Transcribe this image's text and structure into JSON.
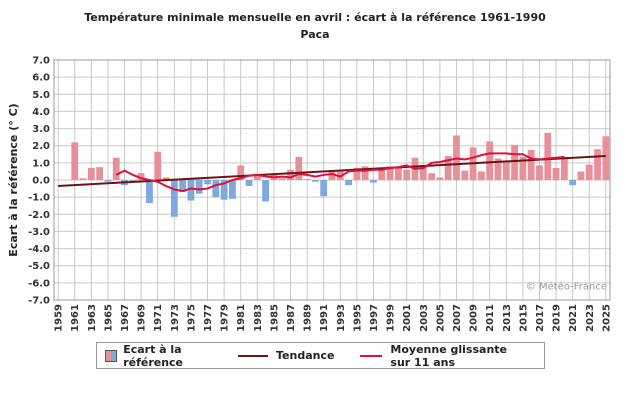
{
  "title": "Température minimale mensuelle en avril : écart à la référence 1961-1990",
  "subtitle": "Paca",
  "credit": "© Météo-France",
  "legend": {
    "bars": "Ecart à la référence",
    "trend": "Tendance",
    "moving_avg": "Moyenne glissante sur 11 ans"
  },
  "colors": {
    "positive": "#e8909a",
    "negative": "#7fa8dc",
    "trend": "#6b1414",
    "moving_avg": "#e0103c",
    "grid": "#c8c8c8"
  },
  "chart_data": {
    "type": "bar",
    "ylabel": "Ecart à la référence (° C)",
    "ylim": [
      -7.0,
      7.0
    ],
    "ytick_step": 1.0,
    "xtick_labels": [
      "1959",
      "1961",
      "1963",
      "1965",
      "1967",
      "1969",
      "1971",
      "1973",
      "1975",
      "1977",
      "1979",
      "1981",
      "1983",
      "1985",
      "1987",
      "1989",
      "1991",
      "1993",
      "1995",
      "1997",
      "1999",
      "2001",
      "2003",
      "2005",
      "2007",
      "2009",
      "2011",
      "2013",
      "2015",
      "2017",
      "2019",
      "2021",
      "2023",
      "2025"
    ],
    "years": [
      1961,
      1962,
      1963,
      1964,
      1965,
      1966,
      1967,
      1968,
      1969,
      1970,
      1971,
      1972,
      1973,
      1974,
      1975,
      1976,
      1977,
      1978,
      1979,
      1980,
      1981,
      1982,
      1983,
      1984,
      1985,
      1986,
      1987,
      1988,
      1989,
      1990,
      1991,
      1992,
      1993,
      1994,
      1995,
      1996,
      1997,
      1998,
      1999,
      2000,
      2001,
      2002,
      2003,
      2004,
      2005,
      2006,
      2007,
      2008,
      2009,
      2010,
      2011,
      2012,
      2013,
      2014,
      2015,
      2016,
      2017,
      2018,
      2019,
      2020,
      2021,
      2022,
      2023,
      2024,
      2025
    ],
    "values": [
      2.2,
      0.1,
      0.7,
      0.75,
      -0.1,
      1.3,
      -0.3,
      -0.05,
      0.4,
      -1.35,
      1.65,
      0.15,
      -2.15,
      -0.7,
      -1.2,
      -0.8,
      -0.25,
      -1.0,
      -1.15,
      -1.1,
      0.85,
      -0.35,
      0.35,
      -1.25,
      0.3,
      0.1,
      0.6,
      1.35,
      0.05,
      -0.1,
      -0.95,
      0.5,
      0.55,
      -0.3,
      0.7,
      0.8,
      -0.15,
      0.6,
      0.8,
      0.75,
      0.6,
      1.3,
      0.8,
      0.4,
      0.15,
      1.4,
      2.6,
      0.55,
      1.9,
      0.5,
      2.25,
      1.25,
      1.1,
      2.05,
      1.35,
      1.75,
      0.85,
      2.75,
      0.7,
      1.35,
      -0.3,
      0.5,
      0.9,
      1.8,
      2.55
    ],
    "trend": {
      "start_year": 1959,
      "start_value": -0.35,
      "end_year": 2025,
      "end_value": 1.4
    },
    "moving_avg": {
      "years": [
        1966,
        1967,
        1968,
        1969,
        1970,
        1971,
        1972,
        1973,
        1974,
        1975,
        1976,
        1977,
        1978,
        1979,
        1980,
        1981,
        1982,
        1983,
        1984,
        1985,
        1986,
        1987,
        1988,
        1989,
        1990,
        1991,
        1992,
        1993,
        1994,
        1995,
        1996,
        1997,
        1998,
        1999,
        2000,
        2001,
        2002,
        2003,
        2004,
        2005,
        2006,
        2007,
        2008,
        2009,
        2010,
        2011,
        2012,
        2013,
        2014,
        2015,
        2016,
        2017,
        2018,
        2019,
        2020
      ],
      "values": [
        0.3,
        0.55,
        0.3,
        0.1,
        0.0,
        -0.1,
        -0.35,
        -0.55,
        -0.65,
        -0.5,
        -0.55,
        -0.5,
        -0.3,
        -0.2,
        0.0,
        0.1,
        0.25,
        0.3,
        0.2,
        0.15,
        0.2,
        0.15,
        0.35,
        0.3,
        0.2,
        0.3,
        0.35,
        0.2,
        0.5,
        0.55,
        0.55,
        0.6,
        0.6,
        0.7,
        0.75,
        0.85,
        0.65,
        0.7,
        1.0,
        1.05,
        1.15,
        1.25,
        1.2,
        1.3,
        1.45,
        1.55,
        1.55,
        1.55,
        1.5,
        1.5,
        1.25,
        1.2,
        1.25,
        1.3,
        1.35
      ]
    },
    "grid": true,
    "legend_position": "bottom"
  }
}
